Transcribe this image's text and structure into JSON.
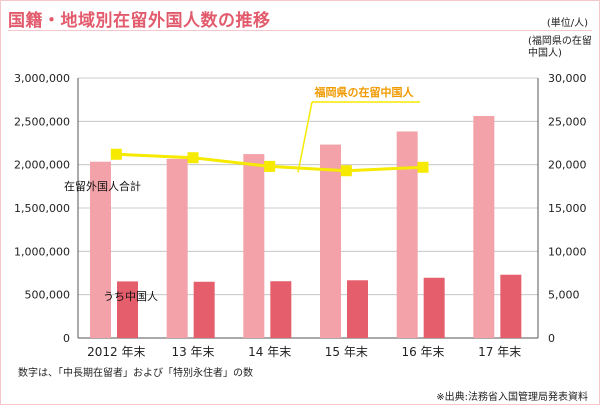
{
  "title": "国籍・地域別在留外国人数の推移",
  "unit_label": "(単位/人)",
  "right_axis_label": "(福岡県の在留中国人)",
  "footnote": "数字は、「中長期在留者」および「特別永住者」の数",
  "source": "※出典:法務省入国管理局発表資料",
  "colors": {
    "total_bar": "#f2a2a8",
    "china_bar": "#e45e6c",
    "fukuoka_line": "#f5ea00",
    "title": "#e25b6d",
    "annotation": "#f09a00"
  },
  "chart_data": {
    "type": "bar",
    "categories": [
      "2012 年末",
      "13 年末",
      "14 年末",
      "15 年末",
      "16 年末",
      "17 年末"
    ],
    "left_axis": {
      "ylim": [
        0,
        3000000
      ],
      "ticks": [
        "0",
        "500,000",
        "1,000,000",
        "1,500,000",
        "2,000,000",
        "2,500,000",
        "3,000,000"
      ]
    },
    "right_axis": {
      "ylim": [
        0,
        30000
      ],
      "ticks": [
        "0",
        "5,000",
        "10,000",
        "15,000",
        "20,000",
        "25,000",
        "30,000"
      ]
    },
    "grid": true,
    "series": [
      {
        "name": "在留外国人合計",
        "type": "bar",
        "axis": "left",
        "values": [
          2034000,
          2067000,
          2122000,
          2232000,
          2383000,
          2562000
        ]
      },
      {
        "name": "うち中国人",
        "type": "bar",
        "axis": "left",
        "values": [
          653000,
          649000,
          655000,
          666000,
          695000,
          730000
        ]
      },
      {
        "name": "福岡県の在留中国人",
        "type": "line",
        "axis": "right",
        "values": [
          21200,
          20800,
          19800,
          19300,
          19700,
          null
        ]
      }
    ]
  }
}
